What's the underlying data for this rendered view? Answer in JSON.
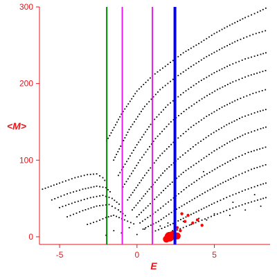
{
  "chart_data": {
    "type": "scatter",
    "title": "",
    "xlabel": "E",
    "ylabel": "<M>",
    "xlim": [
      -6.3,
      8.6
    ],
    "ylim": [
      -10,
      300
    ],
    "x_ticks": [
      "-5",
      "0",
      "5"
    ],
    "x_tick_values": [
      -5,
      0,
      5
    ],
    "y_ticks": [
      "0",
      "100",
      "200",
      "300"
    ],
    "y_tick_values": [
      0,
      100,
      200,
      300
    ],
    "grid": false,
    "vertical_lines": [
      {
        "x": -1.95,
        "color": "#008000"
      },
      {
        "x": -0.95,
        "color": "#e61ce6"
      },
      {
        "x": 1.0,
        "color": "#e61ce6"
      },
      {
        "x": 2.45,
        "color": "#0000ff"
      }
    ],
    "colors": {
      "axis": "#e8141a",
      "dots": "#000000",
      "highlight": "#ff0000"
    },
    "series": [
      {
        "color": "#000000",
        "points": [
          [
            -2.0,
            2
          ],
          [
            -1.5,
            8
          ],
          [
            -1.0,
            5
          ],
          [
            -0.5,
            12
          ],
          [
            0.0,
            3
          ],
          [
            0.5,
            10
          ],
          [
            1.0,
            6
          ],
          [
            1.5,
            14
          ],
          [
            2.0,
            18
          ],
          [
            2.3,
            8
          ],
          [
            3.0,
            20
          ],
          [
            3.5,
            16
          ],
          [
            4.0,
            24
          ],
          [
            4.5,
            22
          ],
          [
            5.0,
            30
          ],
          [
            6.0,
            28
          ],
          [
            7.0,
            35
          ],
          [
            8.0,
            40
          ],
          [
            4.3,
            85
          ],
          [
            6.2,
            45
          ],
          [
            7.6,
            55
          ]
        ]
      },
      {
        "color": "#ff0000",
        "points": [
          [
            2.1,
            0
          ],
          [
            2.4,
            2
          ],
          [
            2.8,
            8
          ],
          [
            3.1,
            20
          ],
          [
            3.3,
            28
          ],
          [
            3.6,
            18
          ],
          [
            3.9,
            22
          ],
          [
            4.2,
            15
          ],
          [
            2.9,
            30
          ],
          [
            2.6,
            12
          ]
        ]
      }
    ],
    "curves": [
      {
        "points": [
          [
            -6.1,
            62
          ],
          [
            -5.0,
            70
          ],
          [
            -4.0,
            77
          ],
          [
            -3.2,
            81
          ],
          [
            -2.6,
            82
          ],
          [
            -2.2,
            77
          ],
          [
            -1.95,
            70
          ]
        ]
      },
      {
        "points": [
          [
            -5.5,
            48
          ],
          [
            -4.5,
            56
          ],
          [
            -3.5,
            62
          ],
          [
            -2.6,
            66
          ],
          [
            -2.0,
            64
          ],
          [
            -1.6,
            56
          ]
        ]
      },
      {
        "points": [
          [
            -5.0,
            38
          ],
          [
            -4.0,
            45
          ],
          [
            -3.0,
            51
          ],
          [
            -2.2,
            54
          ],
          [
            -1.6,
            50
          ],
          [
            -1.0,
            40
          ]
        ]
      },
      {
        "points": [
          [
            -4.5,
            26
          ],
          [
            -3.5,
            34
          ],
          [
            -2.6,
            40
          ],
          [
            -1.8,
            42
          ],
          [
            -1.2,
            35
          ],
          [
            -0.6,
            25
          ]
        ]
      },
      {
        "points": [
          [
            -3.2,
            16
          ],
          [
            -2.6,
            20
          ],
          [
            -2.0,
            25
          ],
          [
            -1.5,
            28
          ],
          [
            -0.8,
            22
          ],
          [
            0.0,
            15
          ]
        ]
      },
      {
        "points": [
          [
            -1.95,
            125
          ],
          [
            -1.0,
            160
          ],
          [
            0.0,
            190
          ],
          [
            1.0,
            210
          ],
          [
            2.0,
            225
          ],
          [
            3.0,
            240
          ],
          [
            4.0,
            252
          ],
          [
            5.0,
            265
          ],
          [
            6.0,
            276
          ],
          [
            7.0,
            286
          ],
          [
            7.8,
            293
          ],
          [
            8.5,
            300
          ]
        ]
      },
      {
        "points": [
          [
            -1.5,
            100
          ],
          [
            -0.5,
            140
          ],
          [
            0.5,
            170
          ],
          [
            1.5,
            192
          ],
          [
            2.5,
            208
          ],
          [
            3.5,
            222
          ],
          [
            4.5,
            235
          ],
          [
            5.5,
            246
          ],
          [
            6.5,
            256
          ],
          [
            7.5,
            264
          ],
          [
            8.5,
            270
          ]
        ]
      },
      {
        "points": [
          [
            -1.2,
            80
          ],
          [
            0.0,
            120
          ],
          [
            1.0,
            150
          ],
          [
            2.0,
            172
          ],
          [
            3.0,
            188
          ],
          [
            4.0,
            202
          ],
          [
            5.0,
            214
          ],
          [
            6.0,
            224
          ],
          [
            7.0,
            232
          ],
          [
            8.0,
            238
          ],
          [
            8.5,
            241
          ]
        ]
      },
      {
        "points": [
          [
            -0.9,
            65
          ],
          [
            0.2,
            100
          ],
          [
            1.2,
            128
          ],
          [
            2.2,
            150
          ],
          [
            3.2,
            166
          ],
          [
            4.2,
            180
          ],
          [
            5.2,
            192
          ],
          [
            6.2,
            202
          ],
          [
            7.2,
            210
          ],
          [
            8.5,
            218
          ]
        ]
      },
      {
        "points": [
          [
            -0.6,
            48
          ],
          [
            0.5,
            80
          ],
          [
            1.5,
            106
          ],
          [
            2.5,
            126
          ],
          [
            3.5,
            143
          ],
          [
            4.5,
            157
          ],
          [
            5.5,
            169
          ],
          [
            6.5,
            179
          ],
          [
            7.5,
            187
          ],
          [
            8.5,
            193
          ]
        ]
      },
      {
        "points": [
          [
            -0.3,
            35
          ],
          [
            0.8,
            62
          ],
          [
            1.8,
            86
          ],
          [
            2.8,
            104
          ],
          [
            3.8,
            120
          ],
          [
            4.8,
            134
          ],
          [
            5.8,
            146
          ],
          [
            6.8,
            156
          ],
          [
            7.8,
            163
          ],
          [
            8.5,
            167
          ]
        ]
      },
      {
        "points": [
          [
            0.0,
            26
          ],
          [
            1.0,
            46
          ],
          [
            2.0,
            66
          ],
          [
            3.0,
            84
          ],
          [
            4.0,
            98
          ],
          [
            5.0,
            112
          ],
          [
            6.0,
            124
          ],
          [
            7.0,
            134
          ],
          [
            8.0,
            141
          ],
          [
            8.5,
            144
          ]
        ]
      },
      {
        "points": [
          [
            0.2,
            18
          ],
          [
            1.2,
            32
          ],
          [
            2.2,
            48
          ],
          [
            3.2,
            64
          ],
          [
            4.2,
            78
          ],
          [
            5.2,
            90
          ],
          [
            6.2,
            101
          ],
          [
            7.2,
            110
          ],
          [
            8.5,
            118
          ]
        ]
      },
      {
        "points": [
          [
            0.4,
            10
          ],
          [
            1.4,
            20
          ],
          [
            2.4,
            34
          ],
          [
            3.4,
            46
          ],
          [
            4.4,
            58
          ],
          [
            5.4,
            69
          ],
          [
            6.4,
            79
          ],
          [
            7.4,
            88
          ],
          [
            8.5,
            95
          ]
        ]
      },
      {
        "points": [
          [
            1.0,
            6
          ],
          [
            2.0,
            14
          ],
          [
            3.0,
            24
          ],
          [
            4.0,
            34
          ],
          [
            5.0,
            44
          ],
          [
            6.0,
            53
          ],
          [
            7.0,
            61
          ],
          [
            8.0,
            68
          ],
          [
            8.5,
            71
          ]
        ]
      },
      {
        "points": [
          [
            2.0,
            4
          ],
          [
            3.0,
            12
          ],
          [
            4.0,
            20
          ],
          [
            5.0,
            28
          ],
          [
            6.0,
            36
          ],
          [
            7.0,
            43
          ],
          [
            8.0,
            49
          ],
          [
            8.5,
            52
          ]
        ]
      }
    ],
    "blobs": [
      [
        2.1,
        0,
        7
      ],
      [
        2.3,
        2,
        6
      ],
      [
        1.9,
        -3,
        5
      ],
      [
        2.6,
        1,
        5
      ]
    ]
  }
}
